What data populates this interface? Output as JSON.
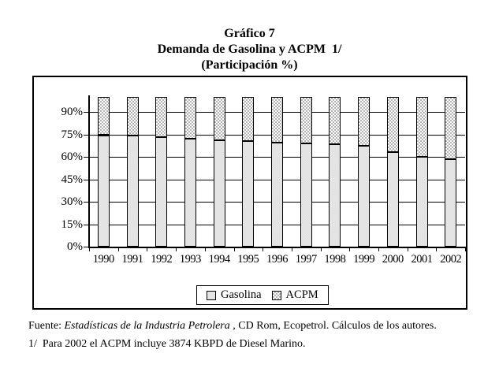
{
  "title": {
    "line1": "Gráfico 7",
    "line2": "Demanda de Gasolina y ACPM  1/",
    "line3": "(Participación %)"
  },
  "chart_data": {
    "type": "bar",
    "stacked": true,
    "title": "Gráfico 7",
    "subtitle": "Demanda de Gasolina y ACPM 1/ (Participación %)",
    "categories": [
      "1990",
      "1991",
      "1992",
      "1993",
      "1994",
      "1995",
      "1996",
      "1997",
      "1998",
      "1999",
      "2000",
      "2001",
      "2002"
    ],
    "series": [
      {
        "name": "Gasolina",
        "values": [
          74.5,
          74,
          73,
          72,
          71,
          70.5,
          69.5,
          69,
          68.5,
          67.5,
          63,
          60,
          58.5
        ]
      },
      {
        "name": "ACPM",
        "values": [
          25.5,
          26,
          27,
          28,
          29,
          29.5,
          30.5,
          31,
          31.5,
          32.5,
          37,
          40,
          41.5
        ]
      }
    ],
    "ylim": [
      0,
      100
    ],
    "ytick_labels": [
      "0%",
      "15%",
      "30%",
      "45%",
      "60%",
      "75%",
      "90%"
    ],
    "ytick_step_pct": 15,
    "grid": true,
    "legend_position": "bottom-inside",
    "xlabel": "",
    "ylabel": ""
  },
  "legend": {
    "items": [
      {
        "label": "Gasolina",
        "swatch": "solid-light-gray"
      },
      {
        "label": "ACPM",
        "swatch": "gray-checker-pattern"
      }
    ]
  },
  "footer": {
    "fuente_prefix": "Fuente: ",
    "fuente_italic": "Estadísticas de la Industria Petrolera",
    "fuente_rest": " , CD Rom, Ecopetrol. Cálculos de los autores.",
    "note": "1/  Para 2002 el ACPM incluye 3874 KBPD de Diesel Marino."
  },
  "colors": {
    "background": "#ffffff",
    "text": "#000000",
    "axis": "#000000",
    "gasolina_fill_a": "#e9e9e9",
    "gasolina_fill_b": "#dedede",
    "acpm_checker_gray": "#b4b4b4",
    "acpm_checker_white": "#ffffff"
  }
}
